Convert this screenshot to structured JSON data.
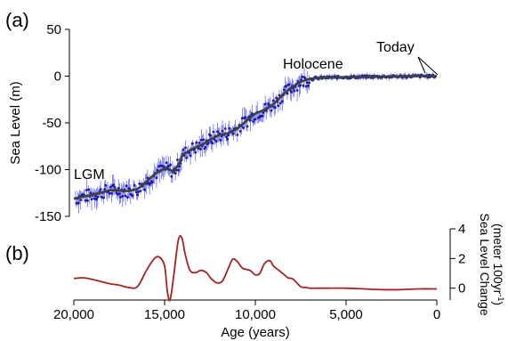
{
  "chart_data": [
    {
      "panel": "(a)",
      "type": "scatter",
      "ylabel": "Sea Level (m)",
      "xlim": [
        20000,
        0
      ],
      "ylim": [
        -150,
        50
      ],
      "yticks": [
        50,
        0,
        -50,
        -100,
        -150
      ],
      "annotations": [
        "LGM",
        "Holocene",
        "Today"
      ],
      "grid": false,
      "series": [
        {
          "kind": "fitted-curve",
          "color": "#404040",
          "x": [
            20000,
            19000,
            18000,
            17000,
            16500,
            16000,
            15500,
            15000,
            14700,
            14500,
            14200,
            14000,
            13500,
            13000,
            12500,
            12000,
            11500,
            11000,
            10500,
            10000,
            9500,
            9000,
            8500,
            8000,
            7500,
            7000,
            6500,
            6000,
            5000,
            4000,
            3000,
            2000,
            1000,
            0
          ],
          "y": [
            -131,
            -127,
            -122,
            -123,
            -121,
            -113,
            -104,
            -99,
            -100,
            -103,
            -93,
            -84,
            -78,
            -74,
            -68,
            -63,
            -61,
            -56,
            -48,
            -40,
            -36,
            -30,
            -20,
            -12,
            -6,
            -3,
            -2,
            -1.5,
            -1,
            -0.8,
            -0.5,
            -0.3,
            0,
            0
          ]
        },
        {
          "kind": "data-points-with-error-bars",
          "color": "#1a1aa6",
          "errorbar_color": "#6f6fe8"
        }
      ]
    },
    {
      "panel": "(b)",
      "type": "line",
      "xlabel": "Age (years)",
      "ylabel": "Sea Level Change (meter 100yr⁻¹)",
      "ylabel_line1": "Sea Level Change",
      "ylabel_line2": "(meter 100yr",
      "ylabel_exp": "-1",
      "ylabel_close": ")",
      "xlim": [
        20000,
        0
      ],
      "xticks": [
        20000,
        15000,
        10000,
        5000,
        0
      ],
      "xticklabels": [
        "20,000",
        "15,000",
        "10,000",
        "5,000",
        "0"
      ],
      "ylim": [
        -0.8,
        4
      ],
      "yticks": [
        4,
        2,
        0
      ],
      "grid": false,
      "series": [
        {
          "color": "#a52323",
          "x": [
            20000,
            19500,
            19000,
            18500,
            18000,
            17500,
            17000,
            16500,
            16000,
            15600,
            15300,
            15000,
            14850,
            14700,
            14500,
            14250,
            14050,
            13850,
            13600,
            13300,
            13000,
            12700,
            12400,
            12100,
            11800,
            11500,
            11250,
            11000,
            10700,
            10300,
            10000,
            9750,
            9500,
            9200,
            9000,
            8700,
            8400,
            8200,
            7900,
            7500,
            7200,
            7000,
            6500,
            6000,
            5000,
            4000,
            3000,
            2000,
            1000,
            0
          ],
          "y": [
            0.65,
            0.7,
            0.6,
            0.45,
            0.3,
            0.2,
            0.05,
            0.1,
            1.2,
            1.95,
            2.1,
            1.5,
            -0.2,
            -0.8,
            0.8,
            3.2,
            3.4,
            2.2,
            1.2,
            1.05,
            1.2,
            1.05,
            0.6,
            0.35,
            0.5,
            1.3,
            1.95,
            1.8,
            1.35,
            1.2,
            0.9,
            1.0,
            1.65,
            1.85,
            1.5,
            1.2,
            0.9,
            0.7,
            0.6,
            0.1,
            0.05,
            0.0,
            0.0,
            0.0,
            0.0,
            -0.05,
            -0.1,
            -0.1,
            -0.05,
            -0.05
          ]
        }
      ]
    }
  ]
}
